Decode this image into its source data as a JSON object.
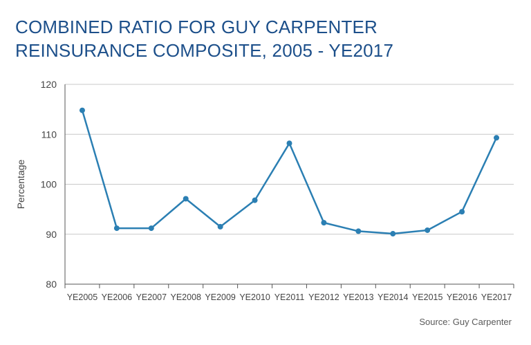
{
  "title_lines": [
    "COMBINED RATIO FOR GUY CARPENTER",
    "REINSURANCE COMPOSITE, 2005 - YE2017"
  ],
  "source": "Source: Guy Carpenter",
  "colors": {
    "title": "#1c4f8a",
    "line": "#2b7fb3",
    "grid": "#c8c8c8",
    "axis": "#555555",
    "text": "#444444"
  },
  "chart_data": {
    "type": "line",
    "title": "COMBINED RATIO FOR GUY CARPENTER REINSURANCE COMPOSITE, 2005 - YE2017",
    "xlabel": "",
    "ylabel": "Percentage",
    "ylim": [
      80,
      120
    ],
    "yticks": [
      80,
      90,
      100,
      110,
      120
    ],
    "grid": true,
    "legend": "none",
    "categories": [
      "YE2005",
      "YE2006",
      "YE2007",
      "YE2008",
      "YE2009",
      "YE2010",
      "YE2011",
      "YE2012",
      "YE2013",
      "YE2014",
      "YE2015",
      "YE2016",
      "YE2017"
    ],
    "series": [
      {
        "values": [
          114.8,
          91.2,
          91.2,
          97.1,
          91.5,
          96.8,
          108.2,
          92.3,
          90.6,
          90.1,
          90.8,
          94.5,
          109.3
        ]
      }
    ]
  }
}
